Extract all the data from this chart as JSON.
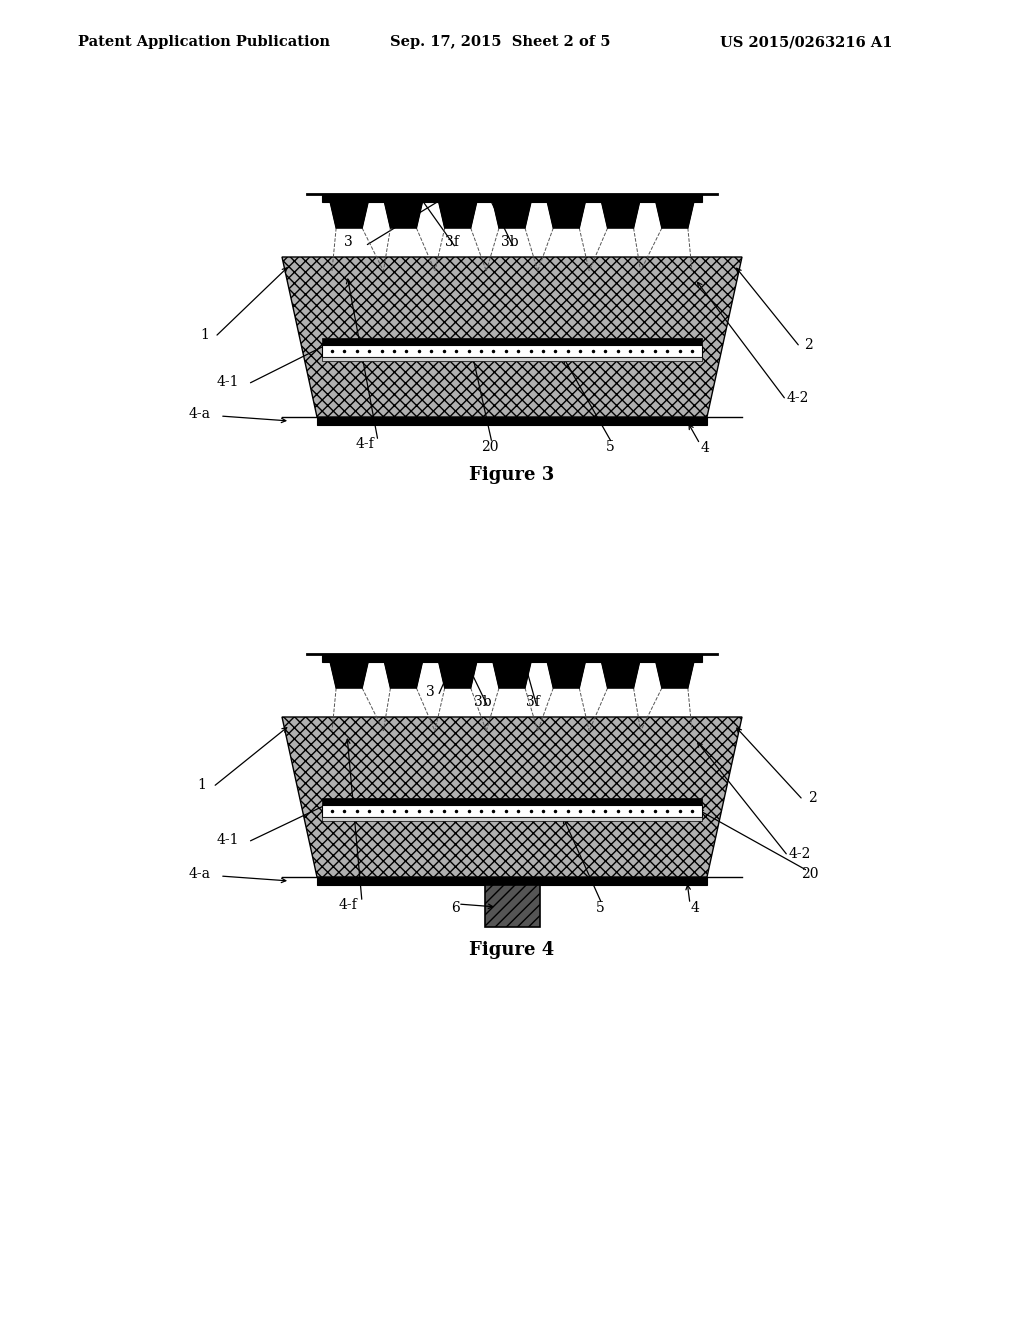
{
  "header_left": "Patent Application Publication",
  "header_mid": "Sep. 17, 2015  Sheet 2 of 5",
  "header_right": "US 2015/0263216 A1",
  "fig3_caption": "Figure 3",
  "fig4_caption": "Figure 4",
  "bg_color": "#ffffff"
}
